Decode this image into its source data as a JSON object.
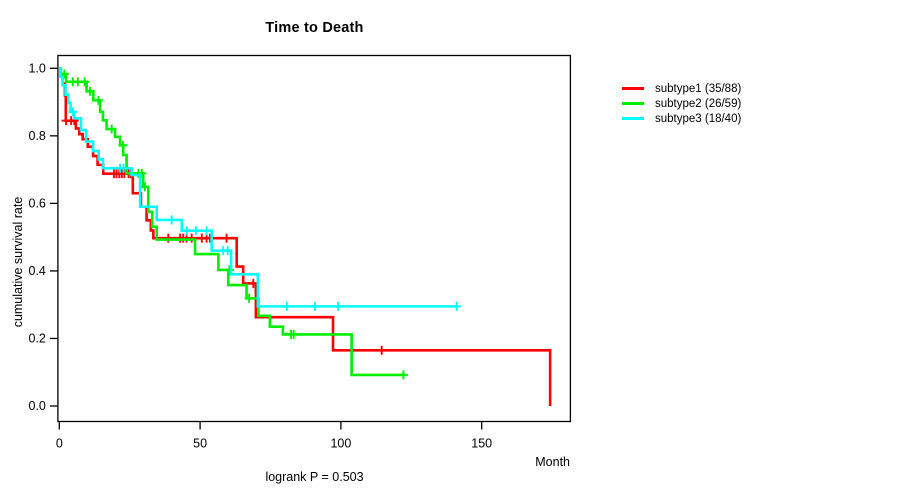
{
  "chart_data": {
    "type": "line",
    "subtype": "kaplan-meier-step",
    "title": "Time to Death",
    "xlabel": "Month",
    "ylabel": "cumulative survival rate",
    "footer": "logrank P = 0.503",
    "xlim": [
      0,
      181
    ],
    "ylim": [
      0.0,
      1.0
    ],
    "xticks": [
      0,
      50,
      100,
      150
    ],
    "yticks": [
      "0.0",
      "0.2",
      "0.4",
      "0.6",
      "0.8",
      "1.0"
    ],
    "grid": false,
    "legend_position": "right-outside",
    "series": [
      {
        "name": "subtype1 (35/88)",
        "color": "#ff0000",
        "steps": [
          [
            0,
            1.0
          ],
          [
            0.5,
            0.977
          ],
          [
            1.2,
            0.955
          ],
          [
            2.0,
            0.92
          ],
          [
            2.3,
            0.845
          ],
          [
            5.9,
            0.822
          ],
          [
            7.1,
            0.805
          ],
          [
            8.3,
            0.79
          ],
          [
            10.1,
            0.768
          ],
          [
            12.0,
            0.74
          ],
          [
            13.6,
            0.714
          ],
          [
            15.6,
            0.688
          ],
          [
            26.1,
            0.63
          ],
          [
            29.0,
            0.59
          ],
          [
            31.0,
            0.55
          ],
          [
            32.5,
            0.52
          ],
          [
            33.4,
            0.497
          ],
          [
            63.0,
            0.413
          ],
          [
            65.3,
            0.363
          ],
          [
            69.8,
            0.263
          ],
          [
            97.2,
            0.165
          ],
          [
            174.3,
            0.0
          ]
        ],
        "censors": [
          [
            2.4,
            0.845
          ],
          [
            4.2,
            0.845
          ],
          [
            5.3,
            0.845
          ],
          [
            19.4,
            0.688
          ],
          [
            20.3,
            0.688
          ],
          [
            21.3,
            0.688
          ],
          [
            22.2,
            0.688
          ],
          [
            23.1,
            0.688
          ],
          [
            24.6,
            0.688
          ],
          [
            25.4,
            0.688
          ],
          [
            38.7,
            0.497
          ],
          [
            42.9,
            0.497
          ],
          [
            44.0,
            0.497
          ],
          [
            45.2,
            0.497
          ],
          [
            47.0,
            0.497
          ],
          [
            50.6,
            0.497
          ],
          [
            52.3,
            0.497
          ],
          [
            53.5,
            0.497
          ],
          [
            59.4,
            0.497
          ],
          [
            68.9,
            0.363
          ],
          [
            114.5,
            0.165
          ]
        ]
      },
      {
        "name": "subtype2 (26/59)",
        "color": "#00ee00",
        "steps": [
          [
            0,
            1.0
          ],
          [
            0.6,
            0.983
          ],
          [
            2.4,
            0.96
          ],
          [
            9.7,
            0.932
          ],
          [
            12.1,
            0.905
          ],
          [
            14.5,
            0.871
          ],
          [
            15.5,
            0.846
          ],
          [
            16.8,
            0.82
          ],
          [
            19.8,
            0.797
          ],
          [
            21.6,
            0.772
          ],
          [
            22.7,
            0.743
          ],
          [
            23.9,
            0.689
          ],
          [
            29.8,
            0.649
          ],
          [
            31.6,
            0.575
          ],
          [
            33.0,
            0.531
          ],
          [
            34.6,
            0.493
          ],
          [
            48.2,
            0.45
          ],
          [
            56.5,
            0.403
          ],
          [
            60.0,
            0.358
          ],
          [
            66.5,
            0.319
          ],
          [
            70.7,
            0.267
          ],
          [
            74.8,
            0.235
          ],
          [
            79.4,
            0.212
          ],
          [
            103.8,
            0.092
          ],
          [
            122.8,
            0.092
          ]
        ],
        "censors": [
          [
            1.8,
            0.983
          ],
          [
            4.8,
            0.96
          ],
          [
            6.6,
            0.96
          ],
          [
            9.0,
            0.96
          ],
          [
            10.9,
            0.932
          ],
          [
            13.9,
            0.905
          ],
          [
            18.6,
            0.82
          ],
          [
            22.6,
            0.772
          ],
          [
            28.1,
            0.689
          ],
          [
            29.3,
            0.689
          ],
          [
            30.4,
            0.649
          ],
          [
            60.4,
            0.403
          ],
          [
            67.4,
            0.319
          ],
          [
            82.3,
            0.212
          ],
          [
            83.2,
            0.212
          ],
          [
            122.2,
            0.092
          ]
        ]
      },
      {
        "name": "subtype3 (18/40)",
        "color": "#00ffff",
        "steps": [
          [
            0,
            1.0
          ],
          [
            0.4,
            0.975
          ],
          [
            1.2,
            0.95
          ],
          [
            2.2,
            0.922
          ],
          [
            3.2,
            0.897
          ],
          [
            4.0,
            0.871
          ],
          [
            5.3,
            0.852
          ],
          [
            7.7,
            0.817
          ],
          [
            9.5,
            0.783
          ],
          [
            12.0,
            0.755
          ],
          [
            14.0,
            0.73
          ],
          [
            15.5,
            0.704
          ],
          [
            25.7,
            0.684
          ],
          [
            28.7,
            0.59
          ],
          [
            34.6,
            0.551
          ],
          [
            43.5,
            0.519
          ],
          [
            54.1,
            0.46
          ],
          [
            61.0,
            0.39
          ],
          [
            70.5,
            0.295
          ],
          [
            141.7,
            0.295
          ]
        ],
        "censors": [
          [
            4.8,
            0.871
          ],
          [
            21.6,
            0.704
          ],
          [
            22.8,
            0.704
          ],
          [
            39.9,
            0.551
          ],
          [
            45.3,
            0.519
          ],
          [
            48.5,
            0.519
          ],
          [
            52.3,
            0.519
          ],
          [
            58.2,
            0.46
          ],
          [
            59.8,
            0.46
          ],
          [
            80.8,
            0.295
          ],
          [
            90.8,
            0.295
          ],
          [
            99.0,
            0.295
          ],
          [
            141.1,
            0.295
          ]
        ]
      }
    ]
  }
}
